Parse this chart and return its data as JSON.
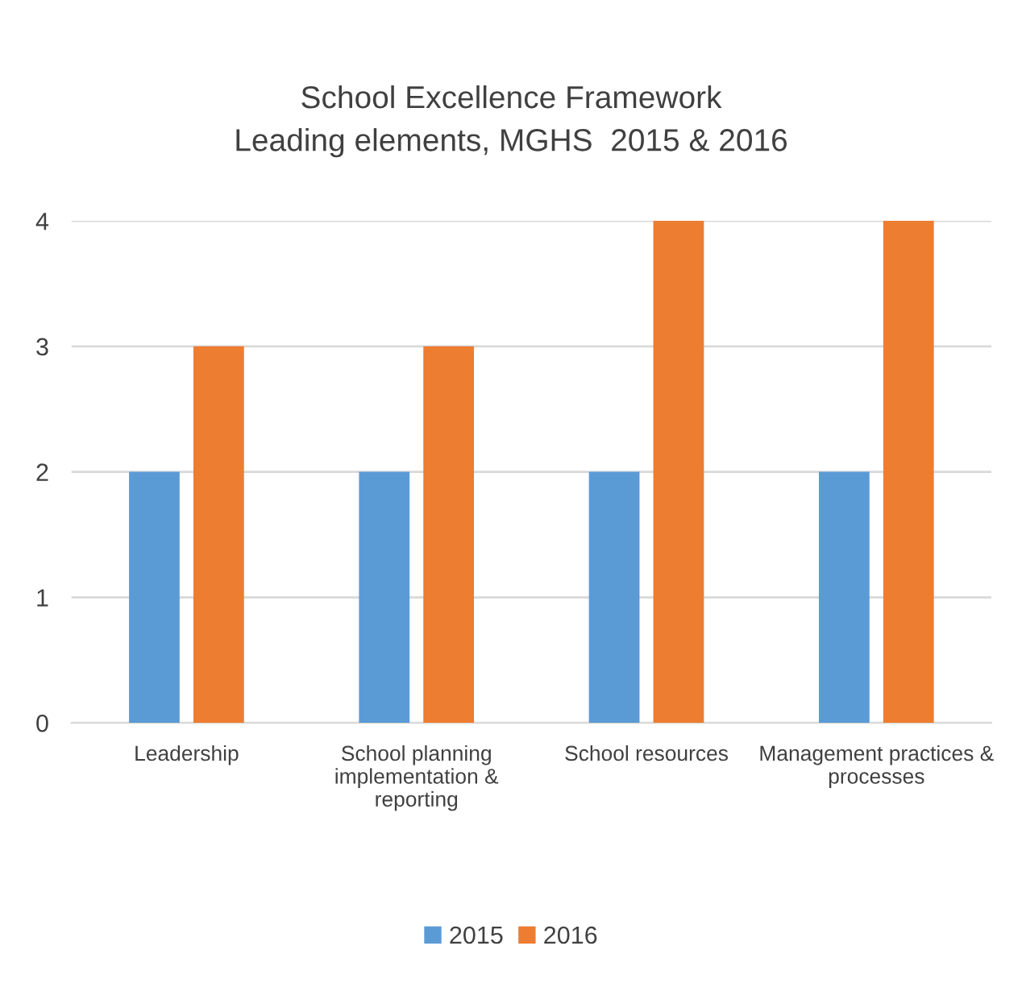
{
  "chart_data": {
    "type": "bar",
    "title": "School Excellence Framework\nLeading elements, MGHS  2015 & 2016",
    "categories": [
      "Leadership",
      "School planning\nimplementation &\nreporting",
      "School resources",
      "Management practices &\nprocesses"
    ],
    "series": [
      {
        "name": "2015",
        "color": "#5b9bd5",
        "values": [
          2,
          2,
          2,
          2
        ]
      },
      {
        "name": "2016",
        "color": "#ed7d31",
        "values": [
          3,
          3,
          4,
          4
        ]
      }
    ],
    "ylim": [
      0,
      4
    ],
    "yticks": [
      0,
      1,
      2,
      3,
      4
    ],
    "grid": "y",
    "legend": "bottom"
  }
}
